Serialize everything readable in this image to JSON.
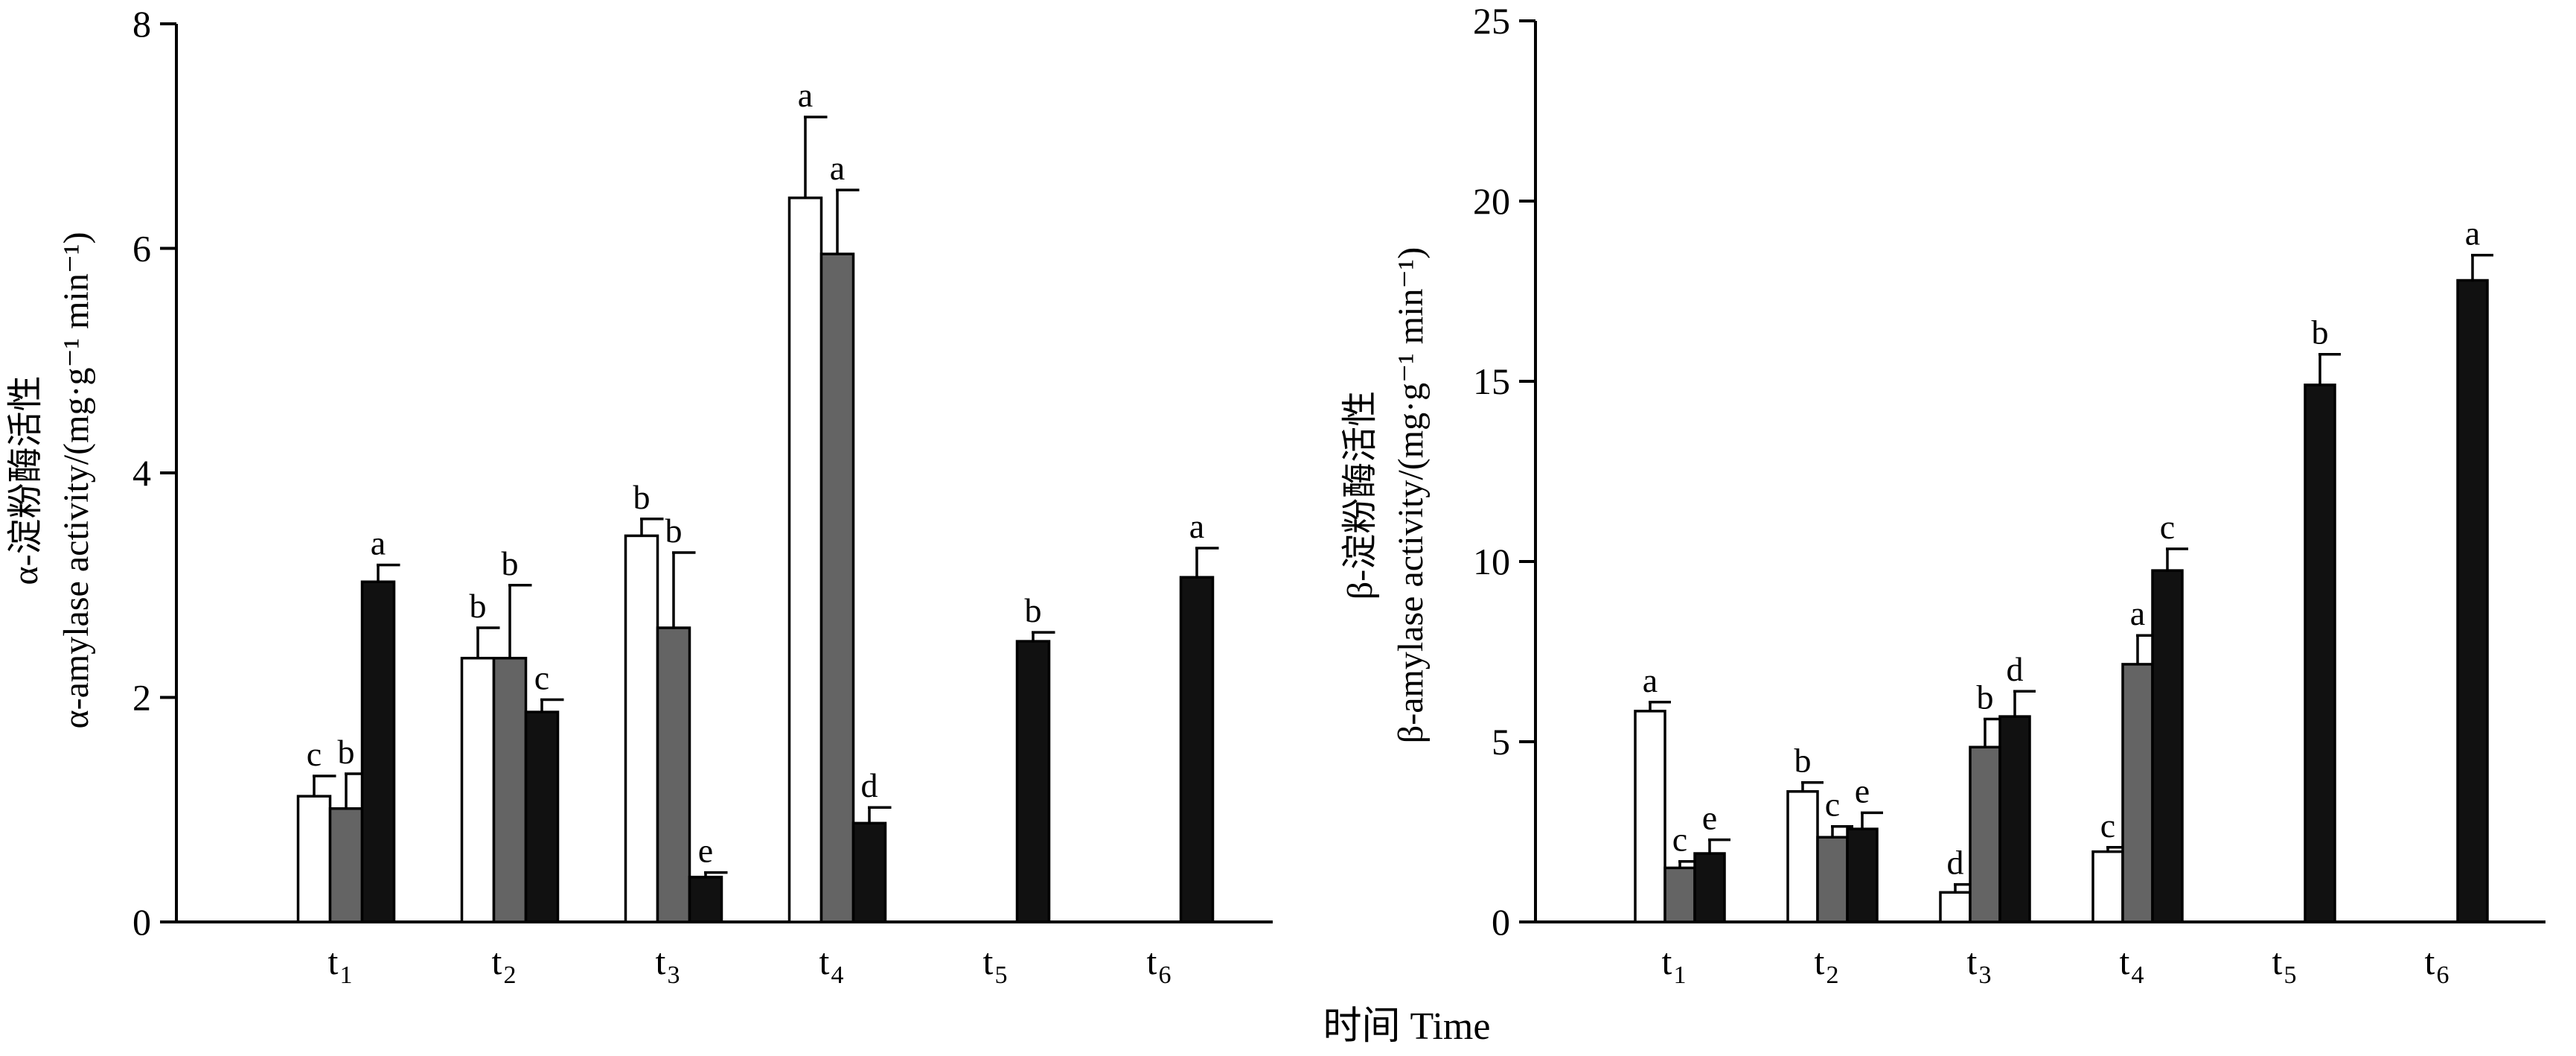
{
  "xlabel": "时间  Time",
  "chart_data": [
    {
      "type": "bar",
      "title": "",
      "ylabel_line1": "α-淀粉酶活性",
      "ylabel_line2": "α-amylase activity/(mg·g⁻¹ min⁻¹)",
      "ylim": [
        0,
        8
      ],
      "yticks": [
        0,
        2,
        4,
        6,
        8
      ],
      "categories": [
        {
          "main": "t",
          "sub": "1"
        },
        {
          "main": "t",
          "sub": "2"
        },
        {
          "main": "t",
          "sub": "3"
        },
        {
          "main": "t",
          "sub": "4"
        },
        {
          "main": "t",
          "sub": "5"
        },
        {
          "main": "t",
          "sub": "6"
        }
      ],
      "series": [
        {
          "color": "#ffffff",
          "values": [
            1.12,
            2.35,
            3.44,
            6.45,
            null,
            null
          ],
          "errors": [
            0.18,
            0.27,
            0.15,
            0.72,
            null,
            null
          ],
          "labels": [
            "c",
            "b",
            "b",
            "a",
            "",
            ""
          ]
        },
        {
          "color": "#646464",
          "values": [
            1.01,
            2.35,
            2.62,
            5.95,
            null,
            null
          ],
          "errors": [
            0.31,
            0.65,
            0.67,
            0.57,
            null,
            null
          ],
          "labels": [
            "b",
            "b",
            "b",
            "a",
            "",
            ""
          ]
        },
        {
          "color": "#111111",
          "values": [
            3.03,
            1.87,
            0.4,
            0.88,
            2.5,
            3.07
          ],
          "errors": [
            0.15,
            0.11,
            0.04,
            0.14,
            0.08,
            0.26
          ],
          "labels": [
            "a",
            "c",
            "e",
            "d",
            "b",
            "a"
          ]
        }
      ]
    },
    {
      "type": "bar",
      "title": "",
      "ylabel_line1": "β-淀粉酶活性",
      "ylabel_line2": "β-amylase activity/(mg·g⁻¹ min⁻¹)",
      "ylim": [
        0,
        25
      ],
      "yticks": [
        0,
        5,
        10,
        15,
        20,
        25
      ],
      "categories": [
        {
          "main": "t",
          "sub": "1"
        },
        {
          "main": "t",
          "sub": "2"
        },
        {
          "main": "t",
          "sub": "3"
        },
        {
          "main": "t",
          "sub": "4"
        },
        {
          "main": "t",
          "sub": "5"
        },
        {
          "main": "t",
          "sub": "6"
        }
      ],
      "series": [
        {
          "color": "#ffffff",
          "values": [
            5.85,
            3.62,
            0.82,
            1.95,
            null,
            null
          ],
          "errors": [
            0.25,
            0.25,
            0.22,
            0.12,
            null,
            null
          ],
          "labels": [
            "a",
            "b",
            "d",
            "c",
            "",
            ""
          ]
        },
        {
          "color": "#646464",
          "values": [
            1.5,
            2.35,
            4.85,
            7.15,
            null,
            null
          ],
          "errors": [
            0.18,
            0.3,
            0.78,
            0.8,
            null,
            null
          ],
          "labels": [
            "c",
            "c",
            "b",
            "a",
            "",
            ""
          ]
        },
        {
          "color": "#111111",
          "values": [
            1.9,
            2.58,
            5.7,
            9.75,
            14.9,
            17.8
          ],
          "errors": [
            0.38,
            0.45,
            0.7,
            0.6,
            0.85,
            0.7
          ],
          "labels": [
            "e",
            "e",
            "d",
            "c",
            "b",
            "a"
          ]
        }
      ]
    }
  ]
}
